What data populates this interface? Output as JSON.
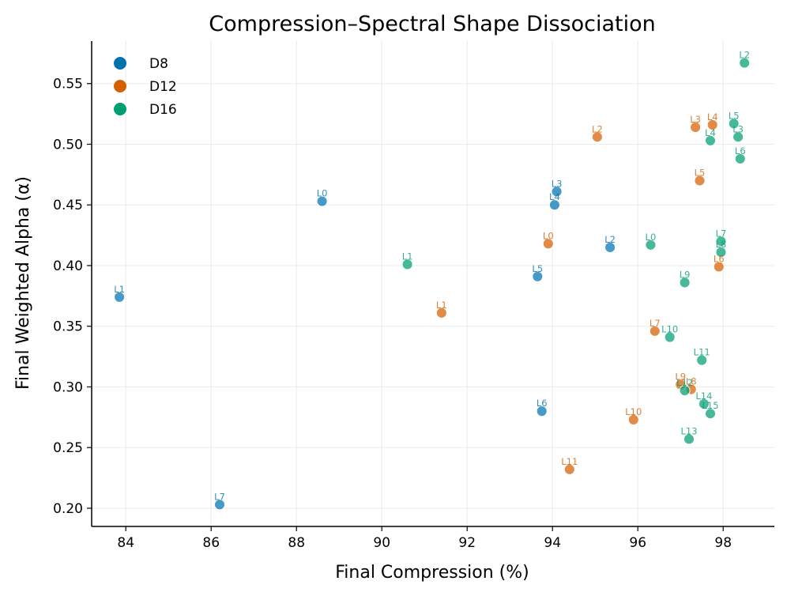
{
  "chart_data": {
    "type": "scatter",
    "title": "Compression–Spectral Shape Dissociation",
    "xlabel": "Final Compression (%)",
    "ylabel": "Final Weighted Alpha (α)",
    "xlim": [
      83.2,
      99.2
    ],
    "ylim": [
      0.185,
      0.585
    ],
    "xticks": [
      84,
      86,
      88,
      90,
      92,
      94,
      96,
      98
    ],
    "yticks": [
      0.2,
      0.25,
      0.3,
      0.35,
      0.4,
      0.45,
      0.5,
      0.55
    ],
    "grid": true,
    "legend_position": "top-left",
    "series": [
      {
        "name": "D8",
        "color": "#0072B2",
        "points": [
          {
            "label": "L0",
            "x": 88.6,
            "y": 0.453
          },
          {
            "label": "L1",
            "x": 83.85,
            "y": 0.374
          },
          {
            "label": "L2",
            "x": 95.35,
            "y": 0.415
          },
          {
            "label": "L3",
            "x": 94.1,
            "y": 0.461
          },
          {
            "label": "L4",
            "x": 94.05,
            "y": 0.45
          },
          {
            "label": "L5",
            "x": 93.65,
            "y": 0.391
          },
          {
            "label": "L6",
            "x": 93.75,
            "y": 0.28
          },
          {
            "label": "L7",
            "x": 86.2,
            "y": 0.203
          }
        ]
      },
      {
        "name": "D12",
        "color": "#D55E00",
        "points": [
          {
            "label": "L0",
            "x": 93.9,
            "y": 0.418
          },
          {
            "label": "L1",
            "x": 91.4,
            "y": 0.361
          },
          {
            "label": "L2",
            "x": 95.05,
            "y": 0.506
          },
          {
            "label": "L3",
            "x": 97.35,
            "y": 0.514
          },
          {
            "label": "L4",
            "x": 97.75,
            "y": 0.516
          },
          {
            "label": "L5",
            "x": 97.45,
            "y": 0.47
          },
          {
            "label": "L6",
            "x": 97.9,
            "y": 0.399
          },
          {
            "label": "L7",
            "x": 96.4,
            "y": 0.346
          },
          {
            "label": "L8",
            "x": 97.25,
            "y": 0.298
          },
          {
            "label": "L9",
            "x": 97.0,
            "y": 0.302
          },
          {
            "label": "L10",
            "x": 95.9,
            "y": 0.273
          },
          {
            "label": "L11",
            "x": 94.4,
            "y": 0.232
          }
        ]
      },
      {
        "name": "D16",
        "color": "#009E73",
        "points": [
          {
            "label": "L0",
            "x": 96.3,
            "y": 0.417
          },
          {
            "label": "L1",
            "x": 90.6,
            "y": 0.401
          },
          {
            "label": "L2",
            "x": 98.5,
            "y": 0.567
          },
          {
            "label": "L3",
            "x": 98.35,
            "y": 0.506
          },
          {
            "label": "L4",
            "x": 97.7,
            "y": 0.503
          },
          {
            "label": "L5",
            "x": 98.25,
            "y": 0.517
          },
          {
            "label": "L6",
            "x": 98.4,
            "y": 0.488
          },
          {
            "label": "L7",
            "x": 97.95,
            "y": 0.42
          },
          {
            "label": "L8",
            "x": 97.95,
            "y": 0.411
          },
          {
            "label": "L9",
            "x": 97.1,
            "y": 0.386
          },
          {
            "label": "L10",
            "x": 96.75,
            "y": 0.341
          },
          {
            "label": "L11",
            "x": 97.5,
            "y": 0.322
          },
          {
            "label": "L12",
            "x": 97.1,
            "y": 0.297
          },
          {
            "label": "L13",
            "x": 97.2,
            "y": 0.257
          },
          {
            "label": "L14",
            "x": 97.55,
            "y": 0.286
          },
          {
            "label": "L15",
            "x": 97.7,
            "y": 0.278
          }
        ]
      }
    ]
  }
}
